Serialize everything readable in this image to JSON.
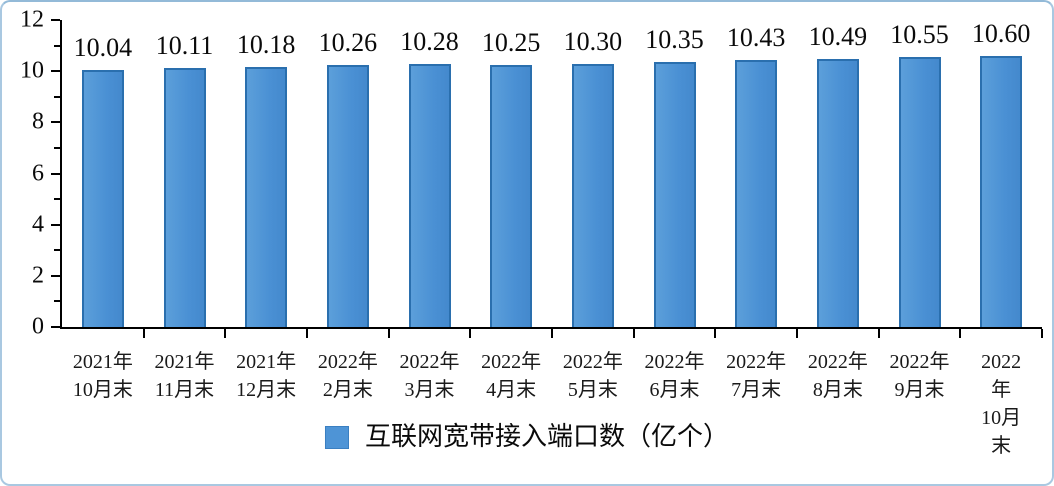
{
  "chart_data": {
    "type": "bar",
    "title": "",
    "xlabel": "",
    "ylabel": "",
    "categories": [
      "2021年\n10月末",
      "2021年\n11月末",
      "2021年\n12月末",
      "2022年\n2月末",
      "2022年\n3月末",
      "2022年\n4月末",
      "2022年\n5月末",
      "2022年\n6月末",
      "2022年\n7月末",
      "2022年\n8月末",
      "2022年\n9月末",
      "2022年\n10月末"
    ],
    "values": [
      10.04,
      10.11,
      10.18,
      10.26,
      10.28,
      10.25,
      10.3,
      10.35,
      10.43,
      10.49,
      10.55,
      10.6
    ],
    "value_label_decimals": 2,
    "ylim": [
      0,
      12
    ],
    "yticks": [
      0,
      2,
      4,
      6,
      8,
      10,
      12
    ],
    "minor_yticks": [
      1,
      3,
      5,
      7,
      9,
      11
    ],
    "grid": false,
    "legend": {
      "label": "互联网宽带接入端口数（亿个）",
      "position": "bottom",
      "swatch_color": "#4e94d6"
    },
    "bar_style": {
      "fill": "#4a90d4",
      "border": "#2a6fae"
    },
    "axis_color": "#000000",
    "frame_border_color": "#a9c8e1"
  }
}
